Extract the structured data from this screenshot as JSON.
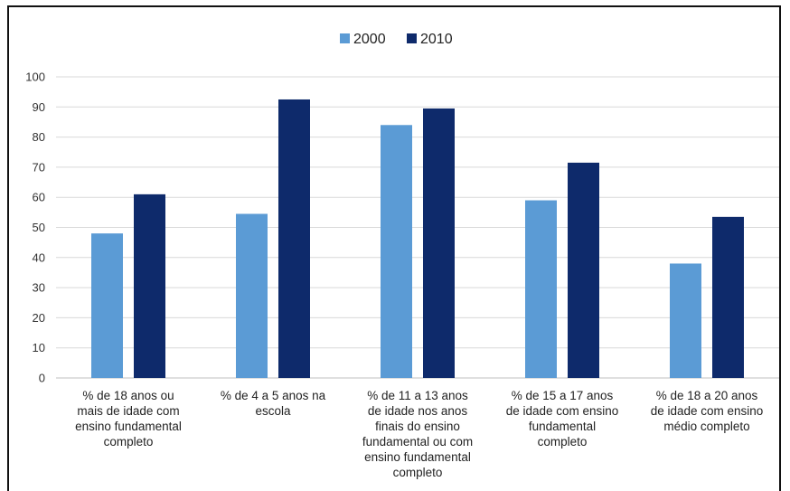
{
  "chart_data": {
    "type": "bar",
    "categories": [
      [
        "% de 18 anos ou",
        "mais de idade com",
        "ensino fundamental",
        "completo"
      ],
      [
        "% de 4 a 5 anos na",
        "escola"
      ],
      [
        "% de 11 a 13 anos",
        "de idade nos anos",
        "finais do ensino",
        "fundamental ou com",
        "ensino fundamental",
        "completo"
      ],
      [
        "% de 15 a 17 anos",
        "de idade com ensino",
        "fundamental",
        "completo"
      ],
      [
        "% de 18 a 20 anos",
        "de idade com ensino",
        "médio completo"
      ]
    ],
    "series": [
      {
        "name": "2000",
        "color": "#5b9bd5",
        "values": [
          48,
          54.5,
          84,
          59,
          38
        ]
      },
      {
        "name": "2010",
        "color": "#0e2a6b",
        "values": [
          61,
          92.5,
          89.5,
          71.5,
          53.5
        ]
      }
    ],
    "ylim": [
      0,
      100
    ],
    "yticks": [
      0,
      10,
      20,
      30,
      40,
      50,
      60,
      70,
      80,
      90,
      100
    ],
    "grid": true,
    "legend_position": "top-center",
    "title": "",
    "xlabel": "",
    "ylabel": ""
  }
}
